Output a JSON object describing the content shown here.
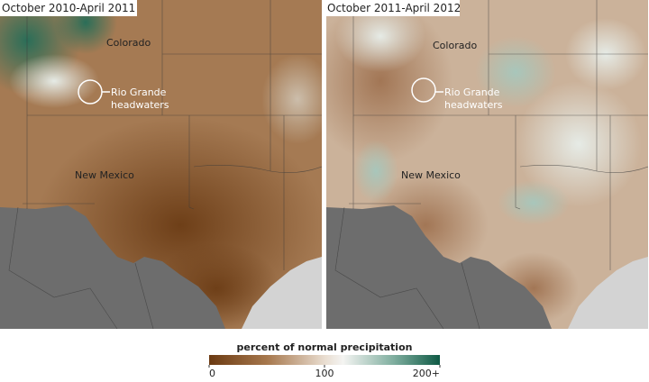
{
  "panels": [
    {
      "title": "October 2010-April 2011",
      "labels": {
        "colorado": "Colorado",
        "headwaters": [
          "Rio Grande",
          "headwaters"
        ],
        "new_mexico": "New Mexico"
      }
    },
    {
      "title": "October 2011-April 2012",
      "labels": {
        "colorado": "Colorado",
        "headwaters": [
          "Rio Grande",
          "headwaters"
        ],
        "new_mexico": "New Mexico"
      }
    }
  ],
  "legend": {
    "title": "percent of normal precipitation",
    "range": [
      0,
      200
    ],
    "ticks": [
      0,
      100,
      {
        "value": 200,
        "label": "200+"
      }
    ]
  }
}
